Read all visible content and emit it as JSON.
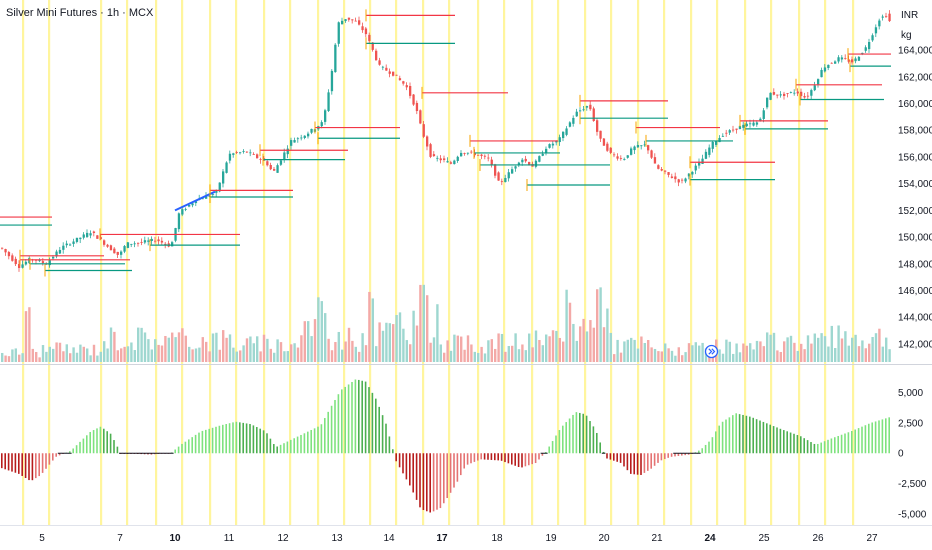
{
  "header": {
    "title": "Silver Mini Futures · 1h · MCX"
  },
  "price_scale": {
    "currency": "INR",
    "unit": "kg"
  },
  "colors": {
    "up": "#26a69a",
    "down": "#ef5350",
    "res_line": "#f23645",
    "sup_line": "#089981",
    "box": "#f7a600",
    "session": "#fff59d",
    "trend": "#2962ff",
    "osc_up_light": "#7ee27e",
    "osc_up_dark": "#4caf50",
    "osc_down_light": "#e57373",
    "osc_down_dark": "#b71c1c"
  },
  "icons": {
    "replay": "replay-arrow-icon"
  },
  "chart_data": [
    {
      "type": "candlestick",
      "title": "Silver Mini Futures · 1h · MCX",
      "ylim": [
        140500,
        167000
      ],
      "y_ticks": [
        "164,000",
        "162,000",
        "160,000",
        "158,000",
        "156,000",
        "154,000",
        "152,000",
        "150,000",
        "148,000",
        "146,000",
        "144,000",
        "142,000"
      ],
      "x_ticks": [
        "5",
        "7",
        "10",
        "11",
        "12",
        "13",
        "14",
        "17",
        "18",
        "19",
        "20",
        "21",
        "24",
        "25",
        "26",
        "27"
      ],
      "price_path": [
        [
          0,
          149200
        ],
        [
          18,
          147800
        ],
        [
          30,
          148400
        ],
        [
          45,
          148000
        ],
        [
          60,
          149200
        ],
        [
          75,
          149800
        ],
        [
          90,
          150400
        ],
        [
          105,
          149400
        ],
        [
          118,
          148600
        ],
        [
          125,
          149500
        ],
        [
          140,
          149600
        ],
        [
          155,
          149800
        ],
        [
          170,
          149300
        ],
        [
          178,
          151800
        ],
        [
          195,
          152800
        ],
        [
          215,
          153300
        ],
        [
          228,
          156200
        ],
        [
          245,
          156400
        ],
        [
          265,
          155600
        ],
        [
          272,
          154800
        ],
        [
          290,
          157200
        ],
        [
          305,
          157700
        ],
        [
          322,
          158600
        ],
        [
          330,
          162000
        ],
        [
          337,
          166000
        ],
        [
          345,
          166400
        ],
        [
          355,
          166100
        ],
        [
          365,
          165200
        ],
        [
          378,
          162800
        ],
        [
          392,
          162200
        ],
        [
          405,
          161300
        ],
        [
          415,
          159600
        ],
        [
          421,
          157900
        ],
        [
          430,
          156000
        ],
        [
          440,
          155800
        ],
        [
          450,
          155500
        ],
        [
          460,
          156400
        ],
        [
          475,
          156200
        ],
        [
          488,
          155800
        ],
        [
          498,
          154000
        ],
        [
          508,
          154800
        ],
        [
          520,
          155900
        ],
        [
          532,
          155300
        ],
        [
          545,
          156700
        ],
        [
          558,
          157300
        ],
        [
          575,
          159300
        ],
        [
          588,
          159900
        ],
        [
          598,
          157400
        ],
        [
          610,
          156200
        ],
        [
          622,
          155800
        ],
        [
          632,
          156700
        ],
        [
          645,
          156900
        ],
        [
          655,
          155200
        ],
        [
          668,
          154600
        ],
        [
          680,
          154100
        ],
        [
          690,
          154900
        ],
        [
          700,
          155700
        ],
        [
          710,
          156900
        ],
        [
          722,
          157700
        ],
        [
          740,
          158300
        ],
        [
          758,
          158600
        ],
        [
          768,
          160800
        ],
        [
          780,
          160600
        ],
        [
          795,
          160900
        ],
        [
          805,
          160400
        ],
        [
          812,
          161200
        ],
        [
          822,
          162700
        ],
        [
          838,
          163400
        ],
        [
          852,
          163100
        ],
        [
          865,
          164200
        ],
        [
          878,
          166300
        ],
        [
          886,
          166700
        ],
        [
          890,
          165800
        ]
      ],
      "trend_line": [
        [
          175,
          152000
        ],
        [
          215,
          153400
        ]
      ],
      "levels": [
        {
          "kind": "resistance",
          "price": 151500,
          "x": [
            0,
            52
          ]
        },
        {
          "kind": "support",
          "price": 150900,
          "x": [
            0,
            52
          ]
        },
        {
          "kind": "resistance",
          "price": 148600,
          "x": [
            20,
            104
          ]
        },
        {
          "kind": "resistance",
          "price": 148300,
          "x": [
            20,
            130
          ]
        },
        {
          "kind": "support",
          "price": 148000,
          "x": [
            30,
            125
          ]
        },
        {
          "kind": "support",
          "price": 147500,
          "x": [
            45,
            132
          ]
        },
        {
          "kind": "resistance",
          "price": 150200,
          "x": [
            100,
            240
          ]
        },
        {
          "kind": "support",
          "price": 149400,
          "x": [
            150,
            240
          ]
        },
        {
          "kind": "resistance",
          "price": 153500,
          "x": [
            210,
            293
          ]
        },
        {
          "kind": "support",
          "price": 153000,
          "x": [
            210,
            293
          ]
        },
        {
          "kind": "resistance",
          "price": 156500,
          "x": [
            260,
            348
          ]
        },
        {
          "kind": "support",
          "price": 155800,
          "x": [
            263,
            345
          ]
        },
        {
          "kind": "resistance",
          "price": 158200,
          "x": [
            315,
            400
          ]
        },
        {
          "kind": "support",
          "price": 157400,
          "x": [
            318,
            400
          ]
        },
        {
          "kind": "resistance",
          "price": 166600,
          "x": [
            366,
            455
          ]
        },
        {
          "kind": "support",
          "price": 164500,
          "x": [
            366,
            455
          ]
        },
        {
          "kind": "resistance",
          "price": 160800,
          "x": [
            422,
            508
          ]
        },
        {
          "kind": "resistance",
          "price": 157200,
          "x": [
            470,
            558
          ]
        },
        {
          "kind": "support",
          "price": 156300,
          "x": [
            474,
            560
          ]
        },
        {
          "kind": "support",
          "price": 155400,
          "x": [
            480,
            610
          ]
        },
        {
          "kind": "support",
          "price": 153900,
          "x": [
            527,
            610
          ]
        },
        {
          "kind": "resistance",
          "price": 160200,
          "x": [
            580,
            668
          ]
        },
        {
          "kind": "support",
          "price": 158900,
          "x": [
            580,
            668
          ]
        },
        {
          "kind": "resistance",
          "price": 158200,
          "x": [
            636,
            720
          ]
        },
        {
          "kind": "support",
          "price": 157200,
          "x": [
            646,
            733
          ]
        },
        {
          "kind": "resistance",
          "price": 155600,
          "x": [
            690,
            775
          ]
        },
        {
          "kind": "support",
          "price": 154300,
          "x": [
            690,
            775
          ]
        },
        {
          "kind": "resistance",
          "price": 158700,
          "x": [
            740,
            828
          ]
        },
        {
          "kind": "support",
          "price": 158100,
          "x": [
            745,
            828
          ]
        },
        {
          "kind": "resistance",
          "price": 161400,
          "x": [
            796,
            882
          ]
        },
        {
          "kind": "support",
          "price": 160300,
          "x": [
            800,
            884
          ]
        },
        {
          "kind": "resistance",
          "price": 163700,
          "x": [
            848,
            891
          ]
        },
        {
          "kind": "support",
          "price": 162800,
          "x": [
            850,
            891
          ]
        }
      ]
    },
    {
      "type": "bar",
      "title": "",
      "series_name": "Volume",
      "segments": [
        [
          0,
          40,
          12
        ],
        [
          40,
          100,
          16
        ],
        [
          100,
          160,
          30
        ],
        [
          160,
          230,
          28
        ],
        [
          230,
          300,
          22
        ],
        [
          300,
          330,
          45
        ],
        [
          330,
          360,
          28
        ],
        [
          360,
          395,
          38
        ],
        [
          395,
          440,
          50
        ],
        [
          440,
          480,
          22
        ],
        [
          480,
          520,
          24
        ],
        [
          520,
          570,
          26
        ],
        [
          570,
          610,
          45
        ],
        [
          610,
          650,
          22
        ],
        [
          650,
          700,
          16
        ],
        [
          700,
          760,
          18
        ],
        [
          760,
          800,
          24
        ],
        [
          800,
          840,
          30
        ],
        [
          840,
          892,
          32
        ]
      ],
      "spikes": [
        [
          28,
          40
        ],
        [
          319,
          60
        ],
        [
          370,
          55
        ],
        [
          420,
          68
        ],
        [
          424,
          63
        ],
        [
          568,
          55
        ],
        [
          596,
          70
        ]
      ]
    },
    {
      "type": "bar",
      "title": "",
      "ylim": [
        -5500,
        6200
      ],
      "y_ticks": [
        "5,000",
        "2,500",
        "0",
        "-2,500",
        "-5,000"
      ],
      "x": [
        0,
        18,
        30,
        40,
        55,
        70,
        90,
        100,
        110,
        120,
        150,
        170,
        180,
        200,
        220,
        235,
        250,
        265,
        275,
        290,
        300,
        320,
        330,
        340,
        355,
        365,
        375,
        385,
        395,
        410,
        420,
        430,
        440,
        455,
        465,
        480,
        500,
        520,
        535,
        545,
        560,
        575,
        585,
        595,
        605,
        620,
        630,
        640,
        650,
        660,
        670,
        680,
        690,
        700,
        710,
        720,
        735,
        750,
        765,
        780,
        800,
        815,
        830,
        850,
        870,
        890
      ],
      "values": [
        -1200,
        -1700,
        -2300,
        -1800,
        -300,
        200,
        1800,
        2200,
        1600,
        0,
        -100,
        0,
        700,
        1800,
        2300,
        2600,
        2400,
        1800,
        500,
        1100,
        1500,
        2300,
        3800,
        5200,
        6100,
        5900,
        4500,
        2500,
        -600,
        -2800,
        -4600,
        -4900,
        -4500,
        -2600,
        -1000,
        -500,
        -600,
        -1200,
        -800,
        100,
        2100,
        3400,
        3200,
        1900,
        -400,
        -800,
        -1700,
        -1800,
        -1300,
        -600,
        -300,
        -200,
        -100,
        300,
        1100,
        2500,
        3300,
        3000,
        2500,
        2000,
        1400,
        700,
        1200,
        1800,
        2500,
        3000
      ]
    }
  ]
}
